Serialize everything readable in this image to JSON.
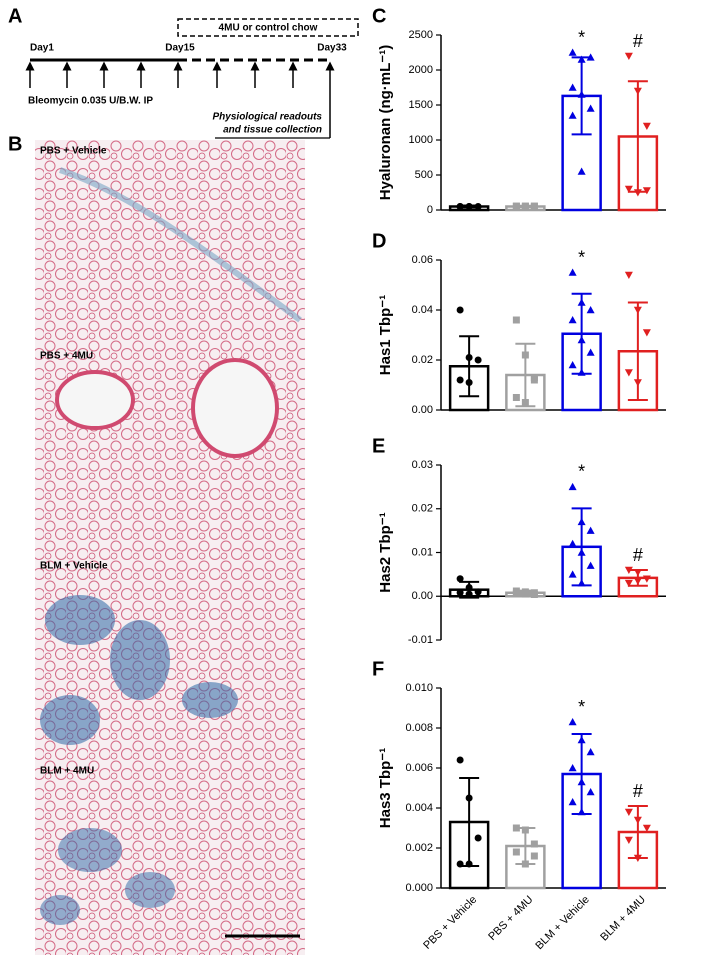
{
  "panel_a": {
    "label": "A",
    "box": "4MU or control chow",
    "days": [
      "Day1",
      "Day15",
      "Day33"
    ],
    "treatment": "Bleomycin 0.035 U/B.W. IP",
    "readout": [
      "Physiological readouts",
      "and tissue collection"
    ]
  },
  "panel_b": {
    "label": "B",
    "images": [
      "PBS + Vehicle",
      "PBS + 4MU",
      "BLM + Vehicle",
      "BLM + 4MU"
    ]
  },
  "chart_data": [
    {
      "type": "bar",
      "panel": "C",
      "ylabel": "Hyaluronan (ng·mL⁻¹)",
      "values": [
        50,
        50,
        1630,
        1050
      ],
      "errors": [
        15,
        10,
        550,
        790
      ],
      "points": [
        [
          50,
          50,
          50,
          50,
          50
        ],
        [
          55,
          55,
          55,
          55,
          55,
          55
        ],
        [
          2250,
          2150,
          2180,
          1750,
          1650,
          1450,
          1350,
          550
        ],
        [
          2200,
          1700,
          1200,
          300,
          250,
          280
        ]
      ],
      "colors": [
        "#000000",
        "#a0a0a0",
        "#0000e0",
        "#e02020"
      ],
      "markers": [
        "circle",
        "square",
        "triangle-up",
        "triangle-down"
      ],
      "annotations": [
        null,
        null,
        "*",
        "#"
      ],
      "ylim": [
        0,
        2500
      ],
      "yticks": [
        0,
        500,
        1000,
        1500,
        2000,
        2500
      ]
    },
    {
      "type": "bar",
      "panel": "D",
      "ylabel": "Has1 Tbp⁻¹",
      "values": [
        0.0175,
        0.014,
        0.0305,
        0.0235
      ],
      "errors": [
        0.012,
        0.0125,
        0.016,
        0.0195
      ],
      "points": [
        [
          0.04,
          0.021,
          0.02,
          0.012,
          0.011
        ],
        [
          0.036,
          0.022,
          0.012,
          0.005,
          0.003,
          0.013
        ],
        [
          0.055,
          0.043,
          0.04,
          0.036,
          0.028,
          0.023,
          0.018,
          0.015
        ],
        [
          0.054,
          0.04,
          0.031,
          0.015,
          0.011
        ]
      ],
      "colors": [
        "#000000",
        "#a0a0a0",
        "#0000e0",
        "#e02020"
      ],
      "markers": [
        "circle",
        "square",
        "triangle-up",
        "triangle-down"
      ],
      "annotations": [
        null,
        null,
        "*",
        null
      ],
      "ylim": [
        0,
        0.06
      ],
      "yticks": [
        {
          "value": 0,
          "label": "0.00"
        },
        {
          "value": 0.02,
          "label": "0.02"
        },
        {
          "value": 0.04,
          "label": "0.04"
        },
        {
          "value": 0.06,
          "label": "0.06"
        }
      ]
    },
    {
      "type": "bar",
      "panel": "E",
      "ylabel": "Has2 Tbp⁻¹",
      "values": [
        0.0015,
        0.0008,
        0.0113,
        0.0042
      ],
      "errors": [
        0.0018,
        0.0005,
        0.0088,
        0.0018
      ],
      "points": [
        [
          0.004,
          0.002,
          0.001,
          0.0008,
          0.0005
        ],
        [
          0.0012,
          0.001,
          0.0008,
          0.0006,
          0.0005,
          0.0004
        ],
        [
          0.025,
          0.017,
          0.015,
          0.012,
          0.01,
          0.007,
          0.005,
          0.003
        ],
        [
          0.006,
          0.0055,
          0.004,
          0.003,
          0.0035
        ]
      ],
      "colors": [
        "#000000",
        "#a0a0a0",
        "#0000e0",
        "#e02020"
      ],
      "markers": [
        "circle",
        "square",
        "triangle-up",
        "triangle-down"
      ],
      "annotations": [
        null,
        null,
        "*",
        "#"
      ],
      "ylim": [
        -0.01,
        0.03
      ],
      "yticks": [
        {
          "value": -0.01,
          "label": "-0.01"
        },
        {
          "value": 0,
          "label": "0.00"
        },
        {
          "value": 0.01,
          "label": "0.01"
        },
        {
          "value": 0.02,
          "label": "0.02"
        },
        {
          "value": 0.03,
          "label": "0.03"
        }
      ]
    },
    {
      "type": "bar",
      "panel": "F",
      "ylabel": "Has3 Tbp⁻¹",
      "categories": [
        "PBS + Vehicle",
        "PBS + 4MU",
        "BLM + Vehicle",
        "BLM + 4MU"
      ],
      "values": [
        0.0033,
        0.0021,
        0.0057,
        0.0028
      ],
      "errors": [
        0.0022,
        0.0009,
        0.002,
        0.0013
      ],
      "points": [
        [
          0.0064,
          0.0045,
          0.0025,
          0.0012,
          0.0012
        ],
        [
          0.003,
          0.0029,
          0.0022,
          0.0018,
          0.0012,
          0.0016
        ],
        [
          0.0083,
          0.0074,
          0.0068,
          0.006,
          0.0053,
          0.0048,
          0.0043,
          0.0038
        ],
        [
          0.0038,
          0.0034,
          0.003,
          0.0024,
          0.0015
        ]
      ],
      "colors": [
        "#000000",
        "#a0a0a0",
        "#0000e0",
        "#e02020"
      ],
      "markers": [
        "circle",
        "square",
        "triangle-up",
        "triangle-down"
      ],
      "annotations": [
        null,
        null,
        "*",
        "#"
      ],
      "ylim": [
        0,
        0.01
      ],
      "yticks": [
        {
          "value": 0,
          "label": "0.000"
        },
        {
          "value": 0.002,
          "label": "0.002"
        },
        {
          "value": 0.004,
          "label": "0.004"
        },
        {
          "value": 0.006,
          "label": "0.006"
        },
        {
          "value": 0.008,
          "label": "0.008"
        },
        {
          "value": 0.01,
          "label": "0.010"
        }
      ]
    }
  ]
}
